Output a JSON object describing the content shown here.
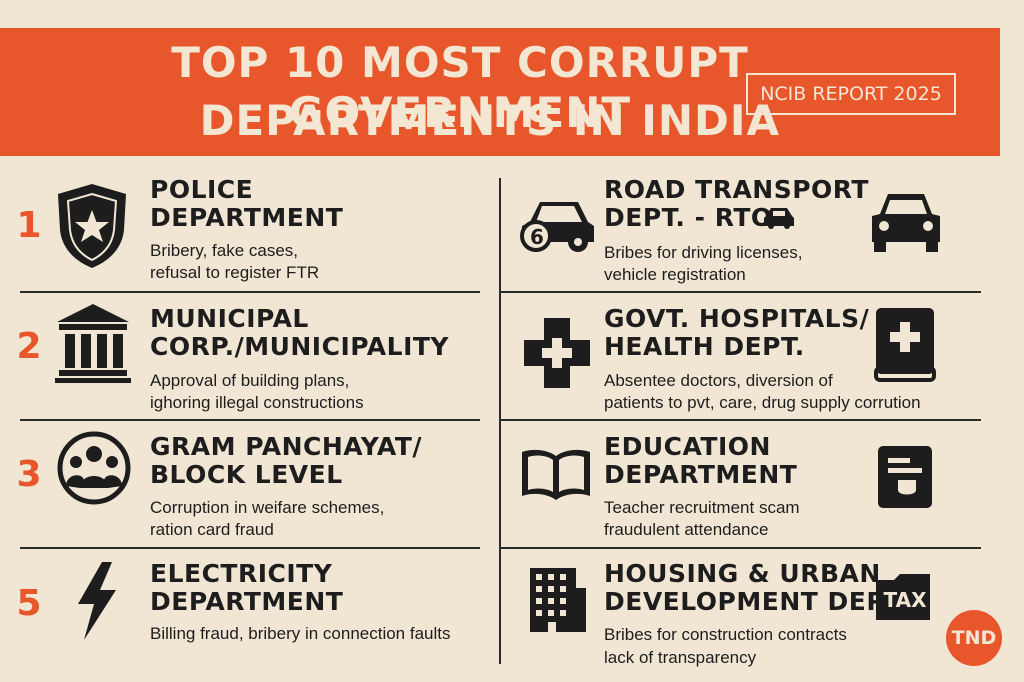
{
  "header": {
    "title_line1": "TOP 10 MOST CORRUPT GOVERNMENT",
    "title_line2": "DEPARTMENTS IN INDIA",
    "badge": "NCIB REPORT 2025"
  },
  "left": [
    {
      "num": "1",
      "title1": "POLICE",
      "title2": "DEPARTMENT",
      "desc1": "Bribery, fake cases,",
      "desc2": "refusal to register FTR",
      "icon": "police-badge-icon"
    },
    {
      "num": "2",
      "title1": "MUNICIPAL",
      "title2": "CORP./MUNICIPALITY",
      "desc1": "Approval of building plans,",
      "desc2": "ighoring illegal constructions",
      "icon": "government-building-icon"
    },
    {
      "num": "3",
      "title1": "GRAM PANCHAYAT/",
      "title2": "BLOCK LEVEL",
      "desc1": "Corruption in weifare schemes,",
      "desc2": "ration card fraud",
      "icon": "people-group-icon"
    },
    {
      "num": "5",
      "title1": "ELECTRICITY",
      "title2": "DEPARTMENT",
      "desc1": "Billing fraud, bribery in connection faults",
      "desc2": "",
      "icon": "lightning-bolt-icon"
    }
  ],
  "right": [
    {
      "title1": "ROAD TRANSPORT",
      "title2": "DEPT. - RTO",
      "desc1": "Bribes for driving licenses,",
      "desc2": "vehicle registration",
      "icon": "car-icon",
      "badge_num": "6"
    },
    {
      "title1": "GOVT. HOSPITALS/",
      "title2": "HEALTH DEPT.",
      "desc1": "Absentee doctors, diversion of",
      "desc2": "patients to pvt, care, drug supply corrution",
      "icon": "medical-cross-icon"
    },
    {
      "title1": "EDUCATION",
      "title2": "DEPARTMENT",
      "desc1": "Teacher recruitment scam",
      "desc2": "fraudulent attendance",
      "icon": "open-book-icon"
    },
    {
      "title1": "HOUSING & URBAN",
      "title2": "DEVELOPMENT DEPT.",
      "desc1": "Bribes for construction contracts",
      "desc2": "lack of transparency",
      "icon": "office-building-icon",
      "tax_label": "TAX"
    }
  ],
  "logo": "TND"
}
